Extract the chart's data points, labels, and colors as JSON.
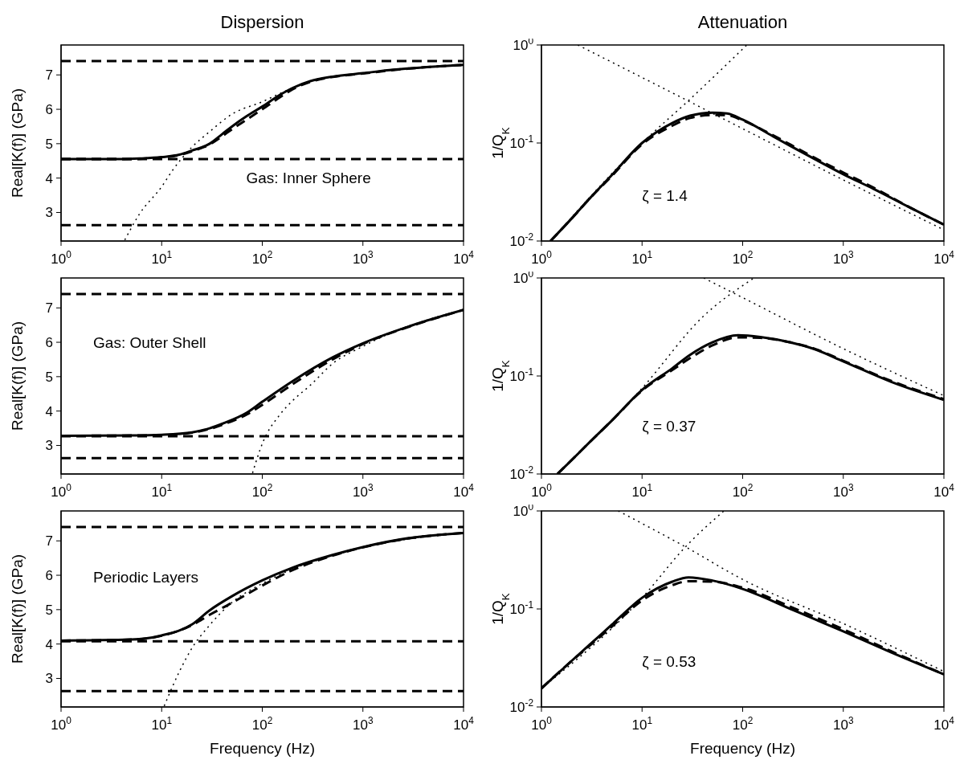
{
  "chart_data": [
    {
      "type": "line",
      "title": "Dispersion",
      "ylabel": "Real[K(f)] (GPa)",
      "log": "x",
      "xlim": [
        1,
        10000
      ],
      "ylim": [
        2.17,
        7.87
      ],
      "xticks": [
        {
          "value": 1,
          "label": "10$^{0}$"
        },
        {
          "value": 10,
          "label": "10$^{1}$"
        },
        {
          "value": 100,
          "label": "10$^{2}$"
        },
        {
          "value": 1000,
          "label": "10$^{3}$"
        },
        {
          "value": 10000,
          "label": "10$^{4}$"
        }
      ],
      "yticks": [
        3,
        4,
        5,
        6,
        7
      ],
      "annotations": [
        "Gas: Inner Sphere"
      ],
      "ref_lines": [
        {
          "axis": "y",
          "value": 7.4,
          "color": "#000000",
          "line_style": "dashed"
        },
        {
          "axis": "y",
          "value": 4.55,
          "color": "#000000",
          "line_style": "dashed"
        },
        {
          "axis": "y",
          "value": 2.63,
          "color": "#000000",
          "line_style": "dashed"
        }
      ],
      "series": [
        {
          "color": "#000000",
          "line_style": "solid",
          "x": [
            1,
            3,
            6,
            10,
            15,
            20,
            30,
            40,
            50,
            70,
            100,
            150,
            200,
            300,
            500,
            1000,
            2000,
            5000,
            10000
          ],
          "values": [
            4.55,
            4.55,
            4.57,
            4.61,
            4.68,
            4.8,
            5.0,
            5.28,
            5.5,
            5.8,
            6.08,
            6.42,
            6.62,
            6.82,
            6.95,
            7.05,
            7.15,
            7.24,
            7.29
          ]
        },
        {
          "color": "#000000",
          "line_style": "dashed",
          "x": [
            1,
            3,
            6,
            10,
            15,
            20,
            30,
            40,
            50,
            70,
            100,
            150,
            200,
            300,
            500,
            1000,
            2000,
            5000,
            10000
          ],
          "values": [
            4.55,
            4.55,
            4.56,
            4.6,
            4.67,
            4.78,
            4.98,
            5.22,
            5.42,
            5.7,
            6.0,
            6.35,
            6.58,
            6.8,
            6.94,
            7.04,
            7.14,
            7.24,
            7.29
          ]
        },
        {
          "color": "#000000",
          "line_style": "dotted",
          "x": [
            4.3,
            6,
            10,
            13,
            20,
            30,
            50,
            100,
            150,
            200,
            300,
            1000,
            10000
          ],
          "values": [
            2.2,
            2.95,
            3.75,
            4.25,
            4.9,
            5.35,
            5.86,
            6.22,
            6.46,
            6.62,
            6.82,
            7.05,
            7.29
          ]
        }
      ]
    },
    {
      "type": "line",
      "title": "Attenuation",
      "ylabel": "1/Q$_{K}$",
      "log": "xy",
      "xlim": [
        1,
        10000
      ],
      "ylim": [
        0.01,
        1
      ],
      "xticks": [
        {
          "value": 1,
          "label": "10$^{0}$"
        },
        {
          "value": 10,
          "label": "10$^{1}$"
        },
        {
          "value": 100,
          "label": "10$^{2}$"
        },
        {
          "value": 1000,
          "label": "10$^{3}$"
        },
        {
          "value": 10000,
          "label": "10$^{4}$"
        }
      ],
      "yticks": [
        {
          "value": 0.01,
          "label": "10$^{-2}$"
        },
        {
          "value": 0.1,
          "label": "10$^{-1}$"
        },
        {
          "value": 1,
          "label": "10$^{0}$"
        }
      ],
      "annotations": [
        "ζ = 1.4"
      ],
      "series": [
        {
          "color": "#000000",
          "line_style": "solid",
          "x": [
            1.23,
            2,
            3,
            5,
            10,
            20,
            30,
            50,
            70,
            100,
            200,
            300,
            500,
            1000,
            2000,
            5000,
            10000
          ],
          "values": [
            0.01,
            0.017,
            0.027,
            0.047,
            0.1,
            0.16,
            0.19,
            0.204,
            0.2,
            0.173,
            0.117,
            0.093,
            0.07,
            0.048,
            0.034,
            0.021,
            0.0147
          ]
        },
        {
          "color": "#000000",
          "line_style": "dashed",
          "x": [
            1.23,
            2,
            3,
            5,
            10,
            20,
            30,
            50,
            70,
            100,
            200,
            300,
            500,
            1000,
            2000,
            5000,
            10000
          ],
          "values": [
            0.01,
            0.017,
            0.027,
            0.046,
            0.097,
            0.15,
            0.18,
            0.193,
            0.192,
            0.17,
            0.12,
            0.096,
            0.072,
            0.05,
            0.035,
            0.021,
            0.0147
          ]
        },
        {
          "color": "#000000",
          "line_style": "dotted",
          "x": [
            1.23,
            10,
            30,
            110
          ],
          "values": [
            0.01,
            0.1,
            0.28,
            1
          ]
        },
        {
          "color": "#000000",
          "line_style": "dotted",
          "x": [
            2.3,
            33,
            100,
            1000,
            10000
          ],
          "values": [
            1,
            0.25,
            0.14,
            0.042,
            0.013
          ]
        }
      ]
    },
    {
      "type": "line",
      "ylabel": "Real[K(f)] (GPa)",
      "log": "x",
      "xlim": [
        1,
        10000
      ],
      "ylim": [
        2.17,
        7.87
      ],
      "xticks": [
        {
          "value": 1,
          "label": "10$^{0}$"
        },
        {
          "value": 10,
          "label": "10$^{1}$"
        },
        {
          "value": 100,
          "label": "10$^{2}$"
        },
        {
          "value": 1000,
          "label": "10$^{3}$"
        },
        {
          "value": 10000,
          "label": "10$^{4}$"
        }
      ],
      "yticks": [
        3,
        4,
        5,
        6,
        7
      ],
      "annotations": [
        "Gas: Outer Shell"
      ],
      "ref_lines": [
        {
          "axis": "y",
          "value": 7.4,
          "color": "#000000",
          "line_style": "dashed"
        },
        {
          "axis": "y",
          "value": 3.27,
          "color": "#000000",
          "line_style": "dashed"
        },
        {
          "axis": "y",
          "value": 2.63,
          "color": "#000000",
          "line_style": "dashed"
        }
      ],
      "series": [
        {
          "color": "#000000",
          "line_style": "solid",
          "x": [
            1,
            5,
            10,
            20,
            30,
            40,
            70,
            100,
            200,
            500,
            1000,
            3000,
            10000
          ],
          "values": [
            3.28,
            3.29,
            3.31,
            3.38,
            3.5,
            3.63,
            3.95,
            4.27,
            4.87,
            5.56,
            5.97,
            6.48,
            6.94
          ]
        },
        {
          "color": "#000000",
          "line_style": "dashed",
          "x": [
            1,
            5,
            10,
            20,
            30,
            40,
            70,
            100,
            200,
            500,
            1000,
            3000,
            10000
          ],
          "values": [
            3.28,
            3.29,
            3.3,
            3.37,
            3.48,
            3.6,
            3.9,
            4.18,
            4.78,
            5.5,
            5.95,
            6.47,
            6.94
          ]
        },
        {
          "color": "#000000",
          "line_style": "dotted",
          "x": [
            80,
            100,
            150,
            200,
            300,
            500,
            1000,
            2000,
            5000,
            10000
          ],
          "values": [
            2.2,
            3.05,
            3.9,
            4.3,
            4.75,
            5.38,
            5.88,
            6.3,
            6.7,
            6.94
          ]
        }
      ]
    },
    {
      "type": "line",
      "ylabel": "1/Q$_{K}$",
      "log": "xy",
      "xlim": [
        1,
        10000
      ],
      "ylim": [
        0.01,
        1
      ],
      "xticks": [
        {
          "value": 1,
          "label": "10$^{0}$"
        },
        {
          "value": 10,
          "label": "10$^{1}$"
        },
        {
          "value": 100,
          "label": "10$^{2}$"
        },
        {
          "value": 1000,
          "label": "10$^{3}$"
        },
        {
          "value": 10000,
          "label": "10$^{4}$"
        }
      ],
      "yticks": [
        {
          "value": 0.01,
          "label": "10$^{-2}$"
        },
        {
          "value": 0.1,
          "label": "10$^{-1}$"
        },
        {
          "value": 1,
          "label": "10$^{0}$"
        }
      ],
      "annotations": [
        "ζ = 0.37"
      ],
      "series": [
        {
          "color": "#000000",
          "line_style": "solid",
          "x": [
            1.44,
            2,
            3,
            5,
            10,
            20,
            30,
            50,
            90,
            150,
            300,
            500,
            1000,
            3000,
            10000
          ],
          "values": [
            0.01,
            0.0139,
            0.021,
            0.035,
            0.072,
            0.12,
            0.164,
            0.22,
            0.26,
            0.25,
            0.22,
            0.19,
            0.141,
            0.087,
            0.057
          ]
        },
        {
          "color": "#000000",
          "line_style": "dashed",
          "x": [
            1.44,
            2,
            3,
            5,
            10,
            20,
            30,
            50,
            90,
            150,
            300,
            500,
            1000,
            3000,
            10000
          ],
          "values": [
            0.01,
            0.0139,
            0.021,
            0.035,
            0.071,
            0.115,
            0.152,
            0.205,
            0.248,
            0.245,
            0.22,
            0.192,
            0.143,
            0.089,
            0.058
          ]
        },
        {
          "color": "#000000",
          "line_style": "dotted",
          "x": [
            1.44,
            10,
            40,
            130
          ],
          "values": [
            0.01,
            0.075,
            0.4,
            1
          ]
        },
        {
          "color": "#000000",
          "line_style": "dotted",
          "x": [
            41,
            100,
            1000,
            10000
          ],
          "values": [
            1,
            0.63,
            0.19,
            0.063
          ]
        }
      ]
    },
    {
      "type": "line",
      "ylabel": "Real[K(f)] (GPa)",
      "xlabel": "Frequency (Hz)",
      "log": "x",
      "xlim": [
        1,
        10000
      ],
      "ylim": [
        2.17,
        7.87
      ],
      "xticks": [
        {
          "value": 1,
          "label": "10$^{0}$"
        },
        {
          "value": 10,
          "label": "10$^{1}$"
        },
        {
          "value": 100,
          "label": "10$^{2}$"
        },
        {
          "value": 1000,
          "label": "10$^{3}$"
        },
        {
          "value": 10000,
          "label": "10$^{4}$"
        }
      ],
      "yticks": [
        3,
        4,
        5,
        6,
        7
      ],
      "annotations": [
        "Periodic Layers"
      ],
      "ref_lines": [
        {
          "axis": "y",
          "value": 7.4,
          "color": "#000000",
          "line_style": "dashed"
        },
        {
          "axis": "y",
          "value": 4.08,
          "color": "#000000",
          "line_style": "dashed"
        },
        {
          "axis": "y",
          "value": 2.63,
          "color": "#000000",
          "line_style": "dashed"
        }
      ],
      "series": [
        {
          "color": "#000000",
          "line_style": "solid",
          "x": [
            1,
            5,
            10,
            20,
            30,
            50,
            100,
            200,
            500,
            1000,
            3000,
            10000
          ],
          "values": [
            4.1,
            4.13,
            4.25,
            4.57,
            4.98,
            5.39,
            5.85,
            6.22,
            6.59,
            6.82,
            7.09,
            7.23
          ]
        },
        {
          "color": "#000000",
          "line_style": "dashed",
          "x": [
            1,
            5,
            10,
            20,
            30,
            50,
            100,
            200,
            500,
            1000,
            3000,
            10000
          ],
          "values": [
            4.1,
            4.13,
            4.24,
            4.55,
            4.85,
            5.2,
            5.7,
            6.15,
            6.57,
            6.81,
            7.08,
            7.23
          ]
        },
        {
          "color": "#000000",
          "line_style": "dotted",
          "x": [
            10.6,
            15,
            20,
            30,
            50,
            100,
            200,
            500,
            1000,
            10000
          ],
          "values": [
            2.2,
            3.2,
            3.88,
            4.55,
            5.21,
            5.76,
            6.18,
            6.57,
            6.81,
            7.23
          ]
        }
      ]
    },
    {
      "type": "line",
      "ylabel": "1/Q$_{K}$",
      "xlabel": "Frequency (Hz)",
      "log": "xy",
      "xlim": [
        1,
        10000
      ],
      "ylim": [
        0.01,
        1
      ],
      "xticks": [
        {
          "value": 1,
          "label": "10$^{0}$"
        },
        {
          "value": 10,
          "label": "10$^{1}$"
        },
        {
          "value": 100,
          "label": "10$^{2}$"
        },
        {
          "value": 1000,
          "label": "10$^{3}$"
        },
        {
          "value": 10000,
          "label": "10$^{4}$"
        }
      ],
      "yticks": [
        {
          "value": 0.01,
          "label": "10$^{-2}$"
        },
        {
          "value": 0.1,
          "label": "10$^{-1}$"
        },
        {
          "value": 1,
          "label": "10$^{0}$"
        }
      ],
      "annotations": [
        "ζ = 0.53"
      ],
      "series": [
        {
          "color": "#000000",
          "line_style": "solid",
          "x": [
            1,
            2,
            3,
            5,
            10,
            20,
            29,
            50,
            100,
            300,
            1000,
            3000,
            10000
          ],
          "values": [
            0.0155,
            0.0296,
            0.043,
            0.069,
            0.13,
            0.19,
            0.21,
            0.195,
            0.16,
            0.1,
            0.059,
            0.036,
            0.0215
          ]
        },
        {
          "color": "#000000",
          "line_style": "dashed",
          "x": [
            1,
            2,
            3,
            5,
            10,
            20,
            29,
            50,
            100,
            300,
            1000,
            3000,
            10000
          ],
          "values": [
            0.0155,
            0.0295,
            0.042,
            0.066,
            0.122,
            0.175,
            0.192,
            0.19,
            0.165,
            0.105,
            0.062,
            0.037,
            0.0215
          ]
        },
        {
          "color": "#000000",
          "line_style": "dotted",
          "x": [
            1,
            10,
            27,
            65
          ],
          "values": [
            0.0155,
            0.13,
            0.43,
            1
          ]
        },
        {
          "color": "#000000",
          "line_style": "dotted",
          "x": [
            5.8,
            27,
            100,
            1000,
            10000
          ],
          "values": [
            1,
            0.43,
            0.2,
            0.071,
            0.023
          ]
        }
      ]
    }
  ]
}
